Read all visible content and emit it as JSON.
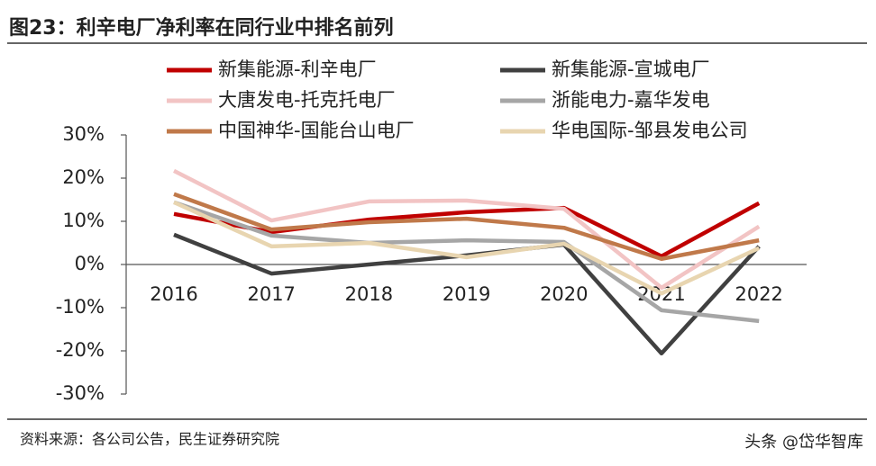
{
  "title": "图23：利辛电厂净利率在同行业中排名前列",
  "source": "资料来源：各公司公告，民生证券研究院",
  "watermark": "头条 @岱华智库",
  "chart_data": {
    "type": "line",
    "categories": [
      "2016",
      "2017",
      "2018",
      "2019",
      "2020",
      "2021",
      "2022"
    ],
    "series": [
      {
        "name": "新集能源-利辛电厂",
        "color": "#c00000",
        "values": [
          11.7,
          7.5,
          10.4,
          12.1,
          13.1,
          1.9,
          14.2
        ]
      },
      {
        "name": "新集能源-宣城电厂",
        "color": "#404040",
        "values": [
          6.9,
          -2.1,
          0,
          2.1,
          4.6,
          -20.6,
          4.2
        ]
      },
      {
        "name": "大唐发电-托克托电厂",
        "color": "#f2c4c4",
        "values": [
          21.7,
          10.2,
          14.6,
          14.8,
          12.9,
          -5.4,
          8.8
        ]
      },
      {
        "name": "浙能电力-嘉华发电",
        "color": "#a6a6a6",
        "values": [
          14.4,
          6.7,
          5.0,
          5.6,
          5.2,
          -10.6,
          -13.1
        ]
      },
      {
        "name": "中国神华-国能台山电厂",
        "color": "#c0794a",
        "values": [
          16.3,
          8.1,
          9.8,
          10.6,
          8.5,
          1.3,
          5.6
        ]
      },
      {
        "name": "华电国际-邹县发电公司",
        "color": "#e8d5b0",
        "values": [
          14.4,
          4.2,
          5.0,
          1.7,
          4.8,
          -6.7,
          3.8
        ]
      }
    ],
    "ylim": [
      -30,
      30
    ],
    "yticks": [
      {
        "value": -30,
        "label": "-30%"
      },
      {
        "value": -20,
        "label": "-20%"
      },
      {
        "value": -10,
        "label": "-10%"
      },
      {
        "value": 0,
        "label": "0%"
      },
      {
        "value": 10,
        "label": "10%"
      },
      {
        "value": 20,
        "label": "20%"
      },
      {
        "value": 30,
        "label": "30%"
      }
    ]
  }
}
